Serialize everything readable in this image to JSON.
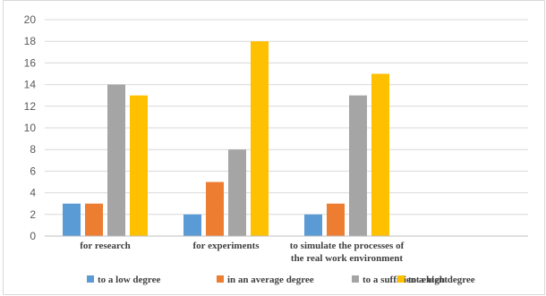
{
  "chart_data": {
    "type": "bar",
    "categories": [
      [
        "for research"
      ],
      [
        "for experiments"
      ],
      [
        "to simulate the processes of",
        "the real work environment"
      ],
      [
        ""
      ]
    ],
    "series": [
      {
        "name": "to a low degree",
        "color": "#5b9bd5",
        "values": [
          3,
          2,
          2,
          null
        ]
      },
      {
        "name": "in an average degree",
        "color": "#ed7d31",
        "values": [
          3,
          5,
          3,
          null
        ]
      },
      {
        "name": "to a sufficient extent",
        "color": "#a5a5a5",
        "values": [
          14,
          8,
          13,
          null
        ]
      },
      {
        "name": "to a high degree",
        "color": "#ffc000",
        "values": [
          13,
          18,
          15,
          null
        ]
      }
    ],
    "ylim": [
      0,
      20
    ],
    "yticks": [
      0,
      2,
      4,
      6,
      8,
      10,
      12,
      14,
      16,
      18,
      20
    ],
    "grid": true,
    "legend": "bottom",
    "title": "",
    "xlabel": "",
    "ylabel": ""
  }
}
